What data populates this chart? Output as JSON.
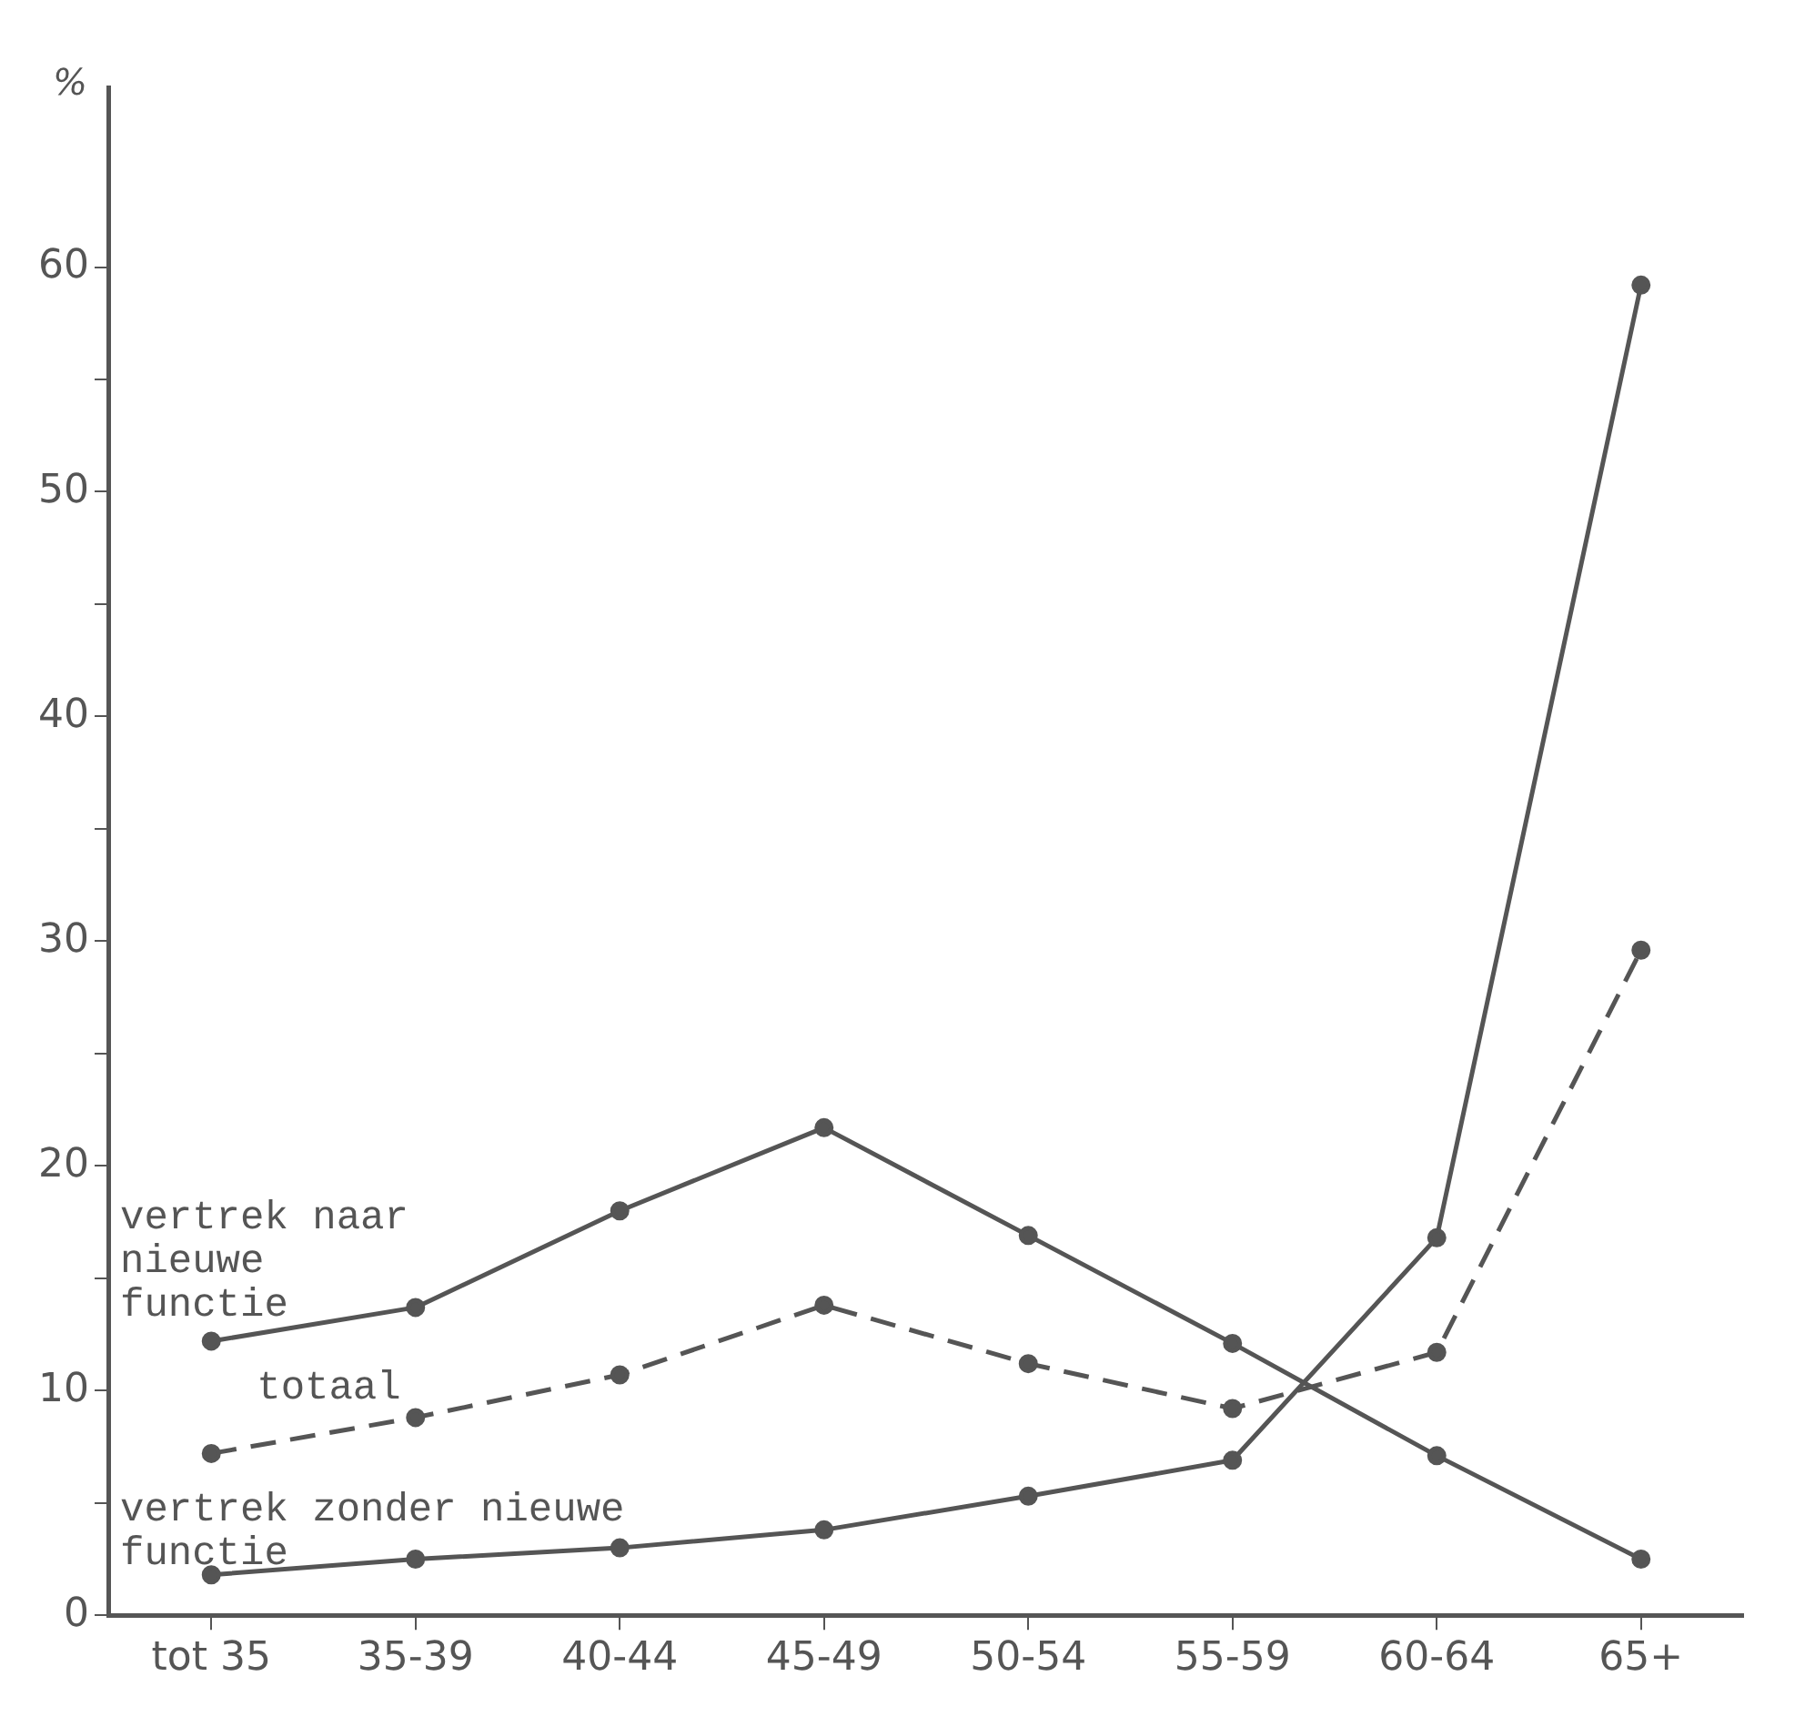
{
  "chart_data": {
    "type": "line",
    "ylabel": "%",
    "categories": [
      "tot 35",
      "35-39",
      "40-44",
      "45-49",
      "50-54",
      "55-59",
      "60-64",
      "65+"
    ],
    "series": [
      {
        "name": "vertrek naar nieuwe functie",
        "color": "#555555",
        "line_style": "solid",
        "values": [
          12.2,
          13.7,
          18.0,
          21.7,
          16.9,
          12.1,
          7.1,
          2.5
        ]
      },
      {
        "name": "totaal",
        "color": "#555555",
        "line_style": "dashed",
        "values": [
          7.2,
          8.8,
          10.7,
          13.8,
          11.2,
          9.2,
          11.7,
          29.6
        ]
      },
      {
        "name": "vertrek zonder nieuwe functie",
        "color": "#555555",
        "line_style": "solid",
        "values": [
          1.8,
          2.5,
          3.0,
          3.8,
          5.3,
          6.9,
          16.8,
          59.2
        ]
      }
    ],
    "ylim": [
      0,
      68
    ],
    "yticks": [
      0,
      {
        "value": 5,
        "label": null
      },
      10,
      {
        "value": 15,
        "label": null
      },
      20,
      {
        "value": 25,
        "label": null
      },
      30,
      {
        "value": 35,
        "label": null
      },
      40,
      {
        "value": 45,
        "label": null
      },
      50,
      {
        "value": 55,
        "label": null
      },
      60
    ],
    "grid": false,
    "legend": false,
    "marker": "circle"
  }
}
